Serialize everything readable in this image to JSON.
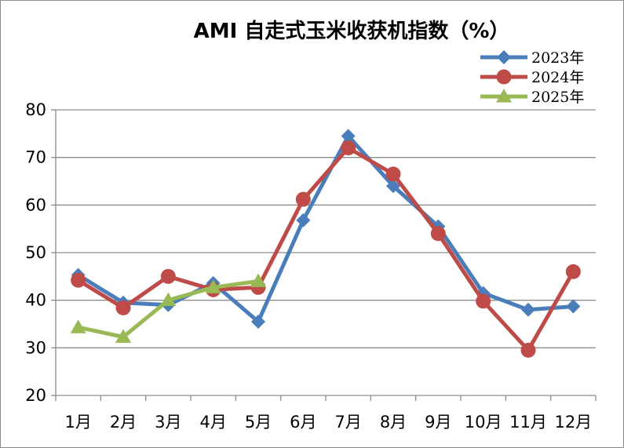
{
  "chart_data": {
    "type": "line",
    "title": "AMI 自走式玉米收获机指数（%）",
    "xlabel": "",
    "ylabel": "",
    "ylim": [
      20,
      80
    ],
    "yticks": [
      20,
      30,
      40,
      50,
      60,
      70,
      80
    ],
    "grid": true,
    "legend_position": "top-right",
    "categories": [
      "1月",
      "2月",
      "3月",
      "4月",
      "5月",
      "6月",
      "7月",
      "8月",
      "9月",
      "10月",
      "11月",
      "12月"
    ],
    "series": [
      {
        "name": "2023年",
        "color": "#4a7ebb",
        "marker": "diamond",
        "values": [
          45.3,
          39.5,
          39.0,
          43.6,
          35.5,
          56.8,
          74.5,
          64.0,
          55.5,
          41.5,
          38.0,
          38.7
        ]
      },
      {
        "name": "2024年",
        "color": "#be4b48",
        "marker": "circle",
        "values": [
          44.2,
          38.4,
          45.0,
          42.2,
          42.7,
          61.2,
          72.0,
          66.5,
          54.0,
          39.8,
          29.5,
          46.0
        ]
      },
      {
        "name": "2025年",
        "color": "#98b954",
        "marker": "triangle",
        "values": [
          34.3,
          32.3,
          40.0,
          42.7,
          44.0,
          null,
          null,
          null,
          null,
          null,
          null,
          null
        ]
      }
    ]
  }
}
